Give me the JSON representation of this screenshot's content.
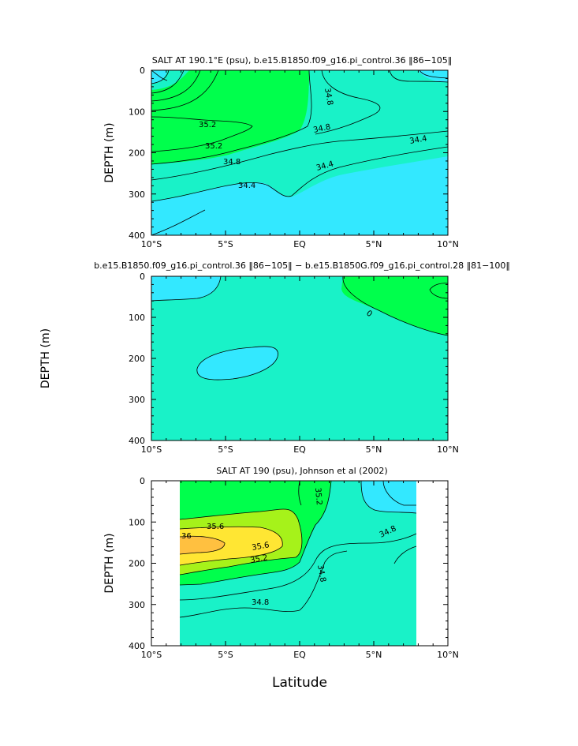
{
  "chart_data": [
    {
      "type": "contour",
      "title": "SALT AT 190.1°E (psu), b.e15.B1850.f09_g16.pi_control.36 ‖86−105‖",
      "ylabel": "DEPTH (m)",
      "xlabel": "",
      "x_ticks": [
        "10°S",
        "5°S",
        "EQ",
        "5°N",
        "10°N"
      ],
      "x_range": [
        -10,
        10
      ],
      "y_ticks": [
        "0",
        "100",
        "200",
        "300",
        "400"
      ],
      "y_range": [
        0,
        400
      ],
      "y_inverted": true,
      "contour_labels": [
        "34.8",
        "35.2",
        "35.2",
        "34.8",
        "34.4",
        "34.4",
        "34.4",
        "34.8"
      ],
      "colors": {
        "low": "#33e8ff",
        "mid": "#19f2c8",
        "high": "#00ff4c"
      }
    },
    {
      "type": "contour",
      "title": "b.e15.B1850.f09_g16.pi_control.36 ‖86−105‖ − b.e15.B1850G.f09_g16.pi_control.28 ‖81−100‖",
      "ylabel": "DEPTH (m)",
      "xlabel": "",
      "x_ticks": [
        "10°S",
        "5°S",
        "EQ",
        "5°N",
        "10°N"
      ],
      "x_range": [
        -10,
        10
      ],
      "y_ticks": [
        "0",
        "100",
        "200",
        "300",
        "400"
      ],
      "y_range": [
        0,
        400
      ],
      "y_inverted": true,
      "contour_labels": [
        "0"
      ],
      "colors": {
        "negative": "#33e8ff",
        "zero": "#19f2c8",
        "positive": "#00ff4c"
      }
    },
    {
      "type": "contour",
      "title": "SALT AT 190 (psu), Johnson et al (2002)",
      "ylabel": "DEPTH (m)",
      "xlabel": "Latitude",
      "x_ticks": [
        "10°S",
        "5°S",
        "EQ",
        "5°N",
        "10°N"
      ],
      "x_range": [
        -10,
        10
      ],
      "data_x_range": [
        -8,
        8
      ],
      "y_ticks": [
        "0",
        "100",
        "200",
        "300",
        "400"
      ],
      "y_range": [
        0,
        400
      ],
      "y_inverted": true,
      "contour_labels": [
        "35.2",
        "35.6",
        "36",
        "35.6",
        "35.2",
        "34.8",
        "34.8",
        "34.8"
      ],
      "colors": {
        "c34_4": "#33e8ff",
        "c34_8": "#19f2c8",
        "c35_2": "#00ff4c",
        "c35_6": "#a6f21a",
        "c36": "#ffe633",
        "c36_4": "#ffc040"
      }
    }
  ]
}
